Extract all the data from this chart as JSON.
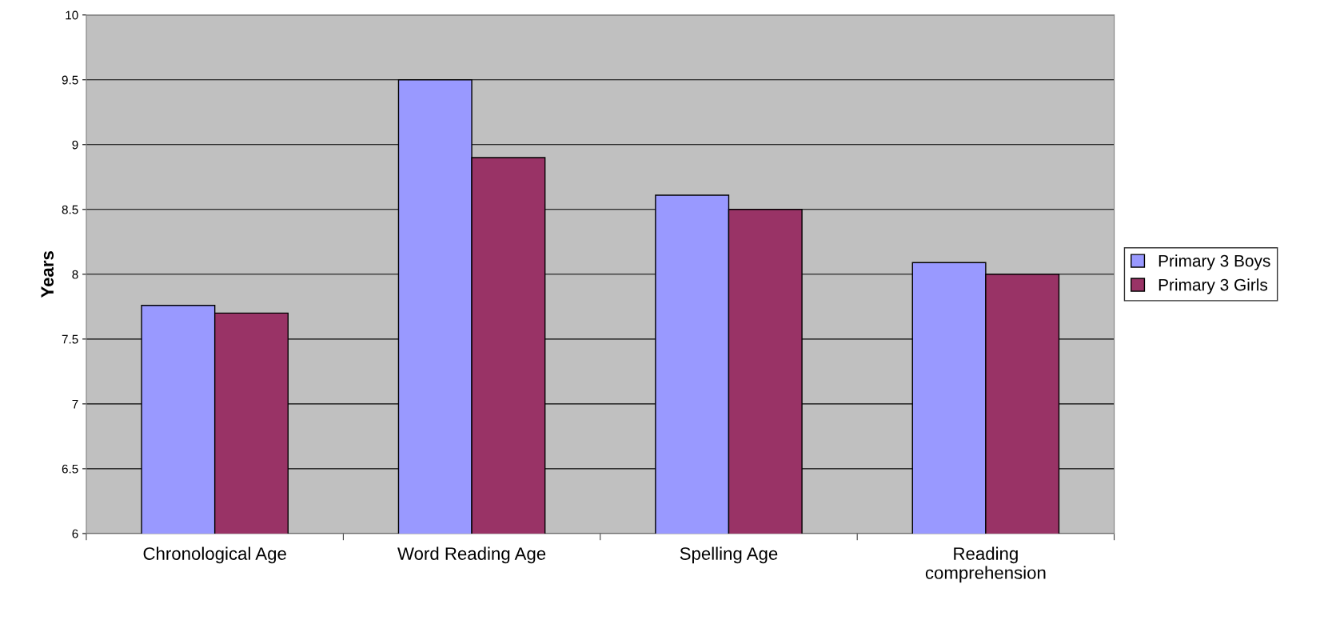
{
  "chart_data": {
    "type": "bar",
    "ylabel": "Years",
    "categories": [
      "Chronological Age",
      "Word Reading Age",
      "Spelling Age",
      "Reading\ncomprehension"
    ],
    "series": [
      {
        "name": "Primary 3 Boys",
        "color": "#9999ff",
        "values": [
          7.76,
          9.5,
          8.61,
          8.09
        ]
      },
      {
        "name": "Primary 3 Girls",
        "color": "#993366",
        "values": [
          7.7,
          8.9,
          8.5,
          8.0
        ]
      }
    ],
    "ylim": [
      6,
      10
    ],
    "yticks": [
      6,
      6.5,
      7,
      7.5,
      8,
      8.5,
      9,
      9.5,
      10
    ],
    "grid": "y",
    "legend": "right"
  }
}
